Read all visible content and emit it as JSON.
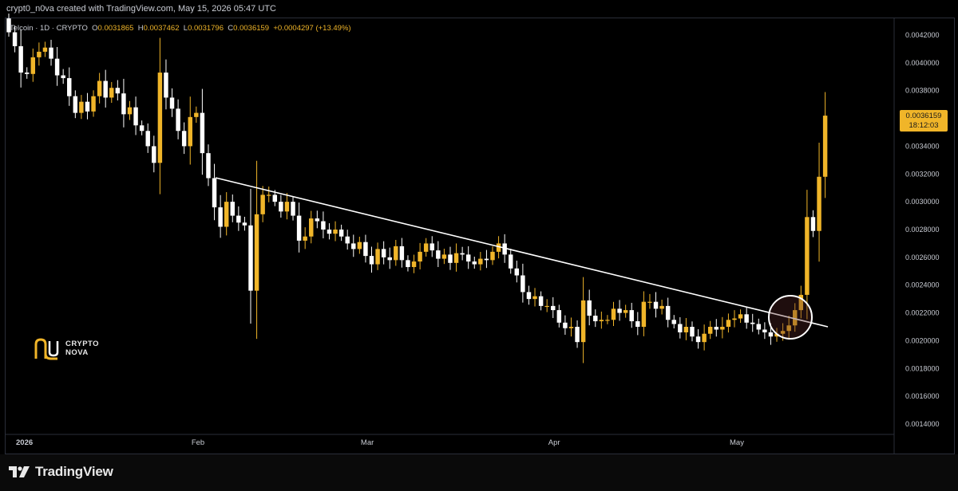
{
  "header": {
    "credit": "crypt0_n0va created with TradingView.com, May 15, 2026 05:47 UTC"
  },
  "legend": {
    "symbol": "Telcoin · 1D · CRYPTO",
    "o_label": "O",
    "o": "0.0031865",
    "h_label": "H",
    "h": "0.0037462",
    "l_label": "L",
    "l": "0.0031796",
    "c_label": "C",
    "c": "0.0036159",
    "change": "+0.0004297 (+13.49%)"
  },
  "price_tag": {
    "price": "0.0036159",
    "countdown": "18:12:03"
  },
  "brand": {
    "line1": "CRYPTO",
    "line2": "NOVA"
  },
  "footer": {
    "logo_text": "TradingView"
  },
  "colors": {
    "up": "#f0b529",
    "down": "#ffffff",
    "background": "#000000",
    "trendline": "#ffffff"
  },
  "chart_data": {
    "type": "candlestick",
    "ylim": [
      0.0013,
      0.0043
    ],
    "yticks": [
      "0.0042000",
      "0.0040000",
      "0.0038000",
      "0.0036000",
      "0.0034000",
      "0.0032000",
      "0.0030000",
      "0.0028000",
      "0.0026000",
      "0.0024000",
      "0.0022000",
      "0.0020000",
      "0.0018000",
      "0.0016000",
      "0.0014000"
    ],
    "xticks": [
      "2026",
      "Feb",
      "Mar",
      "Apr",
      "May"
    ],
    "start": "2026-01-01",
    "end": "2026-05-15",
    "closes": [
      0.00422,
      0.00412,
      0.00393,
      0.00392,
      0.00404,
      0.00408,
      0.00411,
      0.00403,
      0.00391,
      0.00389,
      0.00376,
      0.00364,
      0.00372,
      0.00365,
      0.00376,
      0.00387,
      0.00375,
      0.00382,
      0.00378,
      0.00363,
      0.00368,
      0.00355,
      0.00351,
      0.0034,
      0.00328,
      0.00393,
      0.00375,
      0.00367,
      0.00351,
      0.0034,
      0.00361,
      0.00364,
      0.00335,
      0.00317,
      0.00296,
      0.00282,
      0.003,
      0.0029,
      0.00285,
      0.00283,
      0.00236,
      0.00291,
      0.00305,
      0.00305,
      0.003,
      0.00293,
      0.003,
      0.0029,
      0.00272,
      0.00275,
      0.00288,
      0.00286,
      0.0028,
      0.00277,
      0.0028,
      0.00275,
      0.0027,
      0.00266,
      0.00271,
      0.00261,
      0.00255,
      0.00266,
      0.0026,
      0.00258,
      0.00268,
      0.00258,
      0.00253,
      0.00257,
      0.00264,
      0.0027,
      0.00265,
      0.00259,
      0.00262,
      0.00256,
      0.00263,
      0.00262,
      0.00257,
      0.00255,
      0.00259,
      0.00258,
      0.00264,
      0.0027,
      0.00262,
      0.00252,
      0.00247,
      0.00235,
      0.0023,
      0.00232,
      0.00225,
      0.00225,
      0.00222,
      0.00213,
      0.00209,
      0.0021,
      0.00199,
      0.00229,
      0.00218,
      0.00214,
      0.00215,
      0.00215,
      0.00223,
      0.0022,
      0.00222,
      0.00214,
      0.0021,
      0.00228,
      0.00228,
      0.00223,
      0.00225,
      0.00215,
      0.00212,
      0.00206,
      0.0021,
      0.00203,
      0.00199,
      0.00205,
      0.0021,
      0.00208,
      0.0021,
      0.00215,
      0.00216,
      0.00219,
      0.00213,
      0.00212,
      0.00208,
      0.00206,
      0.00203,
      0.00205,
      0.00207,
      0.00211,
      0.00222,
      0.00233,
      0.00289,
      0.00279,
      0.00318,
      0.00362
    ]
  }
}
